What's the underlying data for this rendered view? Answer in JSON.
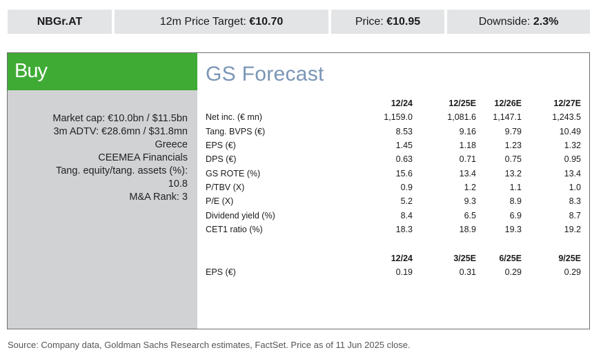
{
  "header": {
    "ticker": "NBGr.AT",
    "price_target_label": "12m Price Target:",
    "price_target_value": "€10.70",
    "price_label": "Price:",
    "price_value": "€10.95",
    "downside_label": "Downside:",
    "downside_value": "2.3%"
  },
  "rating": "Buy",
  "meta": [
    "Market cap: €10.0bn / $11.5bn",
    "3m ADTV: €28.6mn / $31.8mn",
    "Greece",
    "CEEMEA Financials",
    "Tang. equity/tang. assets (%):",
    "10.8",
    "M&A Rank: 3"
  ],
  "forecast": {
    "title": "GS Forecast",
    "annual": {
      "columns": [
        "12/24",
        "12/25E",
        "12/26E",
        "12/27E"
      ],
      "rows": [
        {
          "label": "Net inc. (€ mn)",
          "values": [
            "1,159.0",
            "1,081.6",
            "1,147.1",
            "1,243.5"
          ]
        },
        {
          "label": "Tang. BVPS (€)",
          "values": [
            "8.53",
            "9.16",
            "9.79",
            "10.49"
          ]
        },
        {
          "label": "EPS (€)",
          "values": [
            "1.45",
            "1.18",
            "1.23",
            "1.32"
          ]
        },
        {
          "label": "DPS (€)",
          "values": [
            "0.63",
            "0.71",
            "0.75",
            "0.95"
          ]
        },
        {
          "label": "GS ROTE (%)",
          "values": [
            "15.6",
            "13.4",
            "13.2",
            "13.4"
          ]
        },
        {
          "label": "P/TBV (X)",
          "values": [
            "0.9",
            "1.2",
            "1.1",
            "1.0"
          ]
        },
        {
          "label": "P/E (X)",
          "values": [
            "5.2",
            "9.3",
            "8.9",
            "8.3"
          ]
        },
        {
          "label": "Dividend yield (%)",
          "values": [
            "8.4",
            "6.5",
            "6.9",
            "8.7"
          ]
        },
        {
          "label": "CET1 ratio (%)",
          "values": [
            "18.3",
            "18.9",
            "19.3",
            "19.2"
          ]
        }
      ]
    },
    "quarterly": {
      "columns": [
        "12/24",
        "3/25E",
        "6/25E",
        "9/25E"
      ],
      "rows": [
        {
          "label": "EPS (€)",
          "values": [
            "0.19",
            "0.31",
            "0.29",
            "0.29"
          ]
        }
      ]
    }
  },
  "source": "Source: Company data, Goldman Sachs Research estimates, FactSet. Price as of 11 Jun 2025 close.",
  "colors": {
    "buy_green": "#3fab35",
    "title_blue": "#7b95b6",
    "sidebar_gray": "#d1d2d4",
    "header_gray": "#e3e4e6"
  }
}
